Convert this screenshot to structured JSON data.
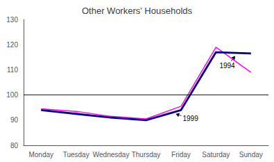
{
  "chart_data": {
    "type": "line",
    "title": "Other Workers' Households",
    "categories": [
      "Monday",
      "Tuesday",
      "Wednesday",
      "Thursday",
      "Friday",
      "Saturday",
      "Sunday"
    ],
    "series": [
      {
        "color": "#ff00ff",
        "values": [
          94.5,
          93.5,
          91.5,
          90.5,
          95.5,
          119.0,
          109.0
        ]
      },
      {
        "color": "#000080",
        "values": [
          94.0,
          92.5,
          91.0,
          90.0,
          94.0,
          117.0,
          116.5
        ]
      }
    ],
    "hline": 100,
    "annotations": [
      {
        "text": "1994",
        "xy": [
          5.55,
          115.5
        ],
        "xytext": [
          5.1,
          111.5
        ]
      },
      {
        "text": "1999",
        "xy": [
          3.85,
          92.5
        ],
        "xytext": [
          4.05,
          90.5
        ]
      }
    ],
    "ylim": [
      80,
      130
    ],
    "yticks": [
      80,
      90,
      100,
      110,
      120,
      130
    ],
    "grid": false
  }
}
